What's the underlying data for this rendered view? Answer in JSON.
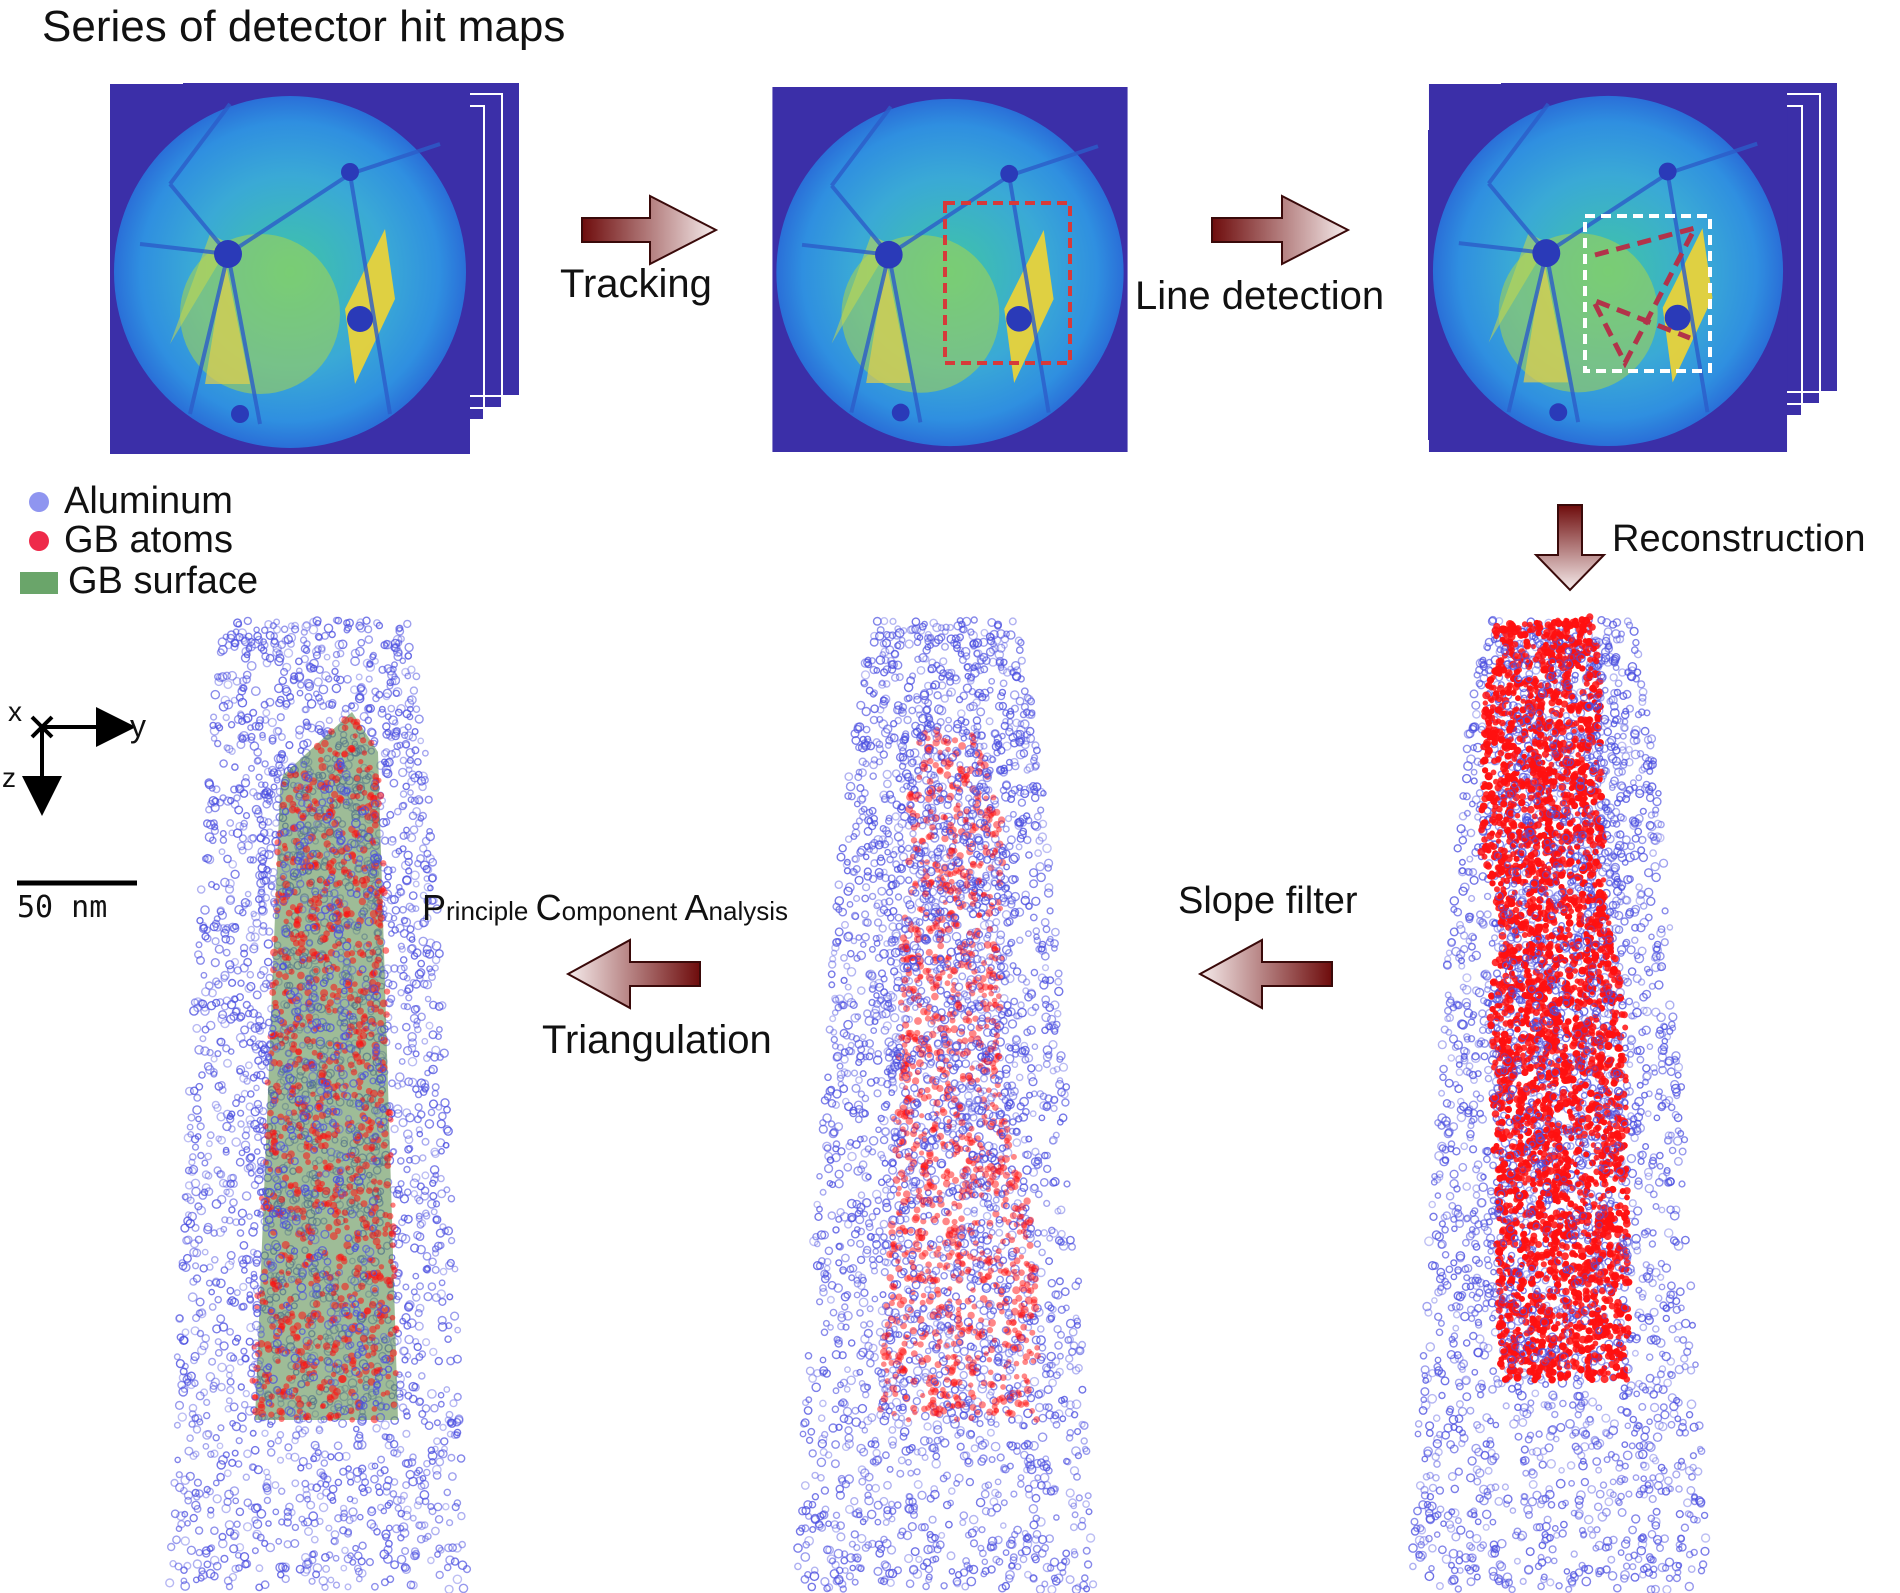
{
  "title": "Series of detector hit maps",
  "steps": {
    "tracking": "Tracking",
    "line_detection": "Line detection",
    "reconstruction": "Reconstruction",
    "slope_filter": "Slope filter",
    "pca": {
      "p_cap": "P",
      "p_rest": "rinciple",
      "c_cap": "C",
      "c_rest": "omponent",
      "a_cap": "A",
      "a_rest": "nalysis"
    },
    "triangulation": "Triangulation"
  },
  "legend": [
    {
      "label": "Aluminum",
      "color": "#8f95f0",
      "shape": "circle"
    },
    {
      "label": "GB atoms",
      "color": "#ee2a4a",
      "shape": "circle"
    },
    {
      "label": "GB surface",
      "color": "#6aa56a",
      "shape": "rect"
    }
  ],
  "axes": {
    "x": "x",
    "y": "y",
    "z": "z"
  },
  "scalebar": {
    "label": "50 nm"
  },
  "colors": {
    "detector_bg": "#3b2fa8",
    "arrow_dark": "#7a1010",
    "arrow_light": "#f4e4e4",
    "roi_red": "#d63a3a",
    "roi_white": "#ffffff",
    "atom_blue": "#4a4ee0",
    "atom_red": "#ff1010",
    "gb_surface": "#5e8f52"
  }
}
